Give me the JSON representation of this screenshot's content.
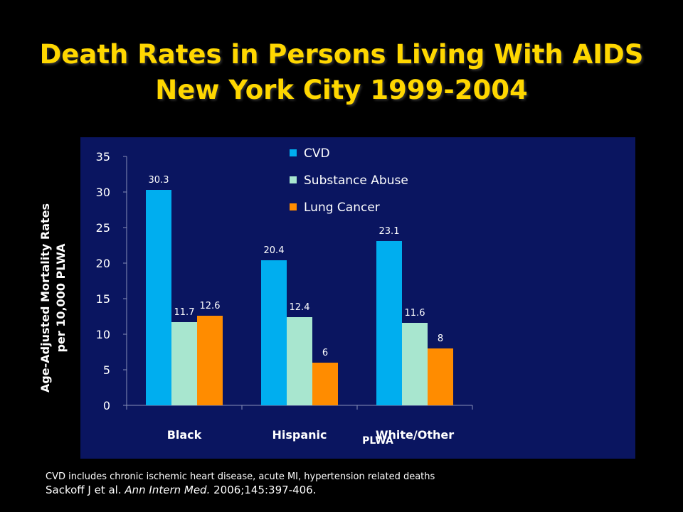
{
  "slide": {
    "title_line1": "Death Rates in Persons Living With AIDS",
    "title_line2": "New York City 1999-2004",
    "footnote": "CVD includes chronic ischemic heart disease, acute MI, hypertension related deaths",
    "citation_authors": "Sackoff J et al. ",
    "citation_journal": "Ann Intern Med.",
    "citation_details": " 2006;145:397-406."
  },
  "colors": {
    "background": "#000000",
    "title": "#FFD700",
    "panel": "#0A1560",
    "cvd": "#00AEEF",
    "substance_abuse": "#A8E6CF",
    "lung_cancer": "#FF8C00"
  },
  "chart_data": {
    "type": "bar",
    "categories": [
      "Black",
      "Hispanic",
      "White/Other"
    ],
    "series": [
      {
        "name": "CVD",
        "values": [
          30.3,
          20.4,
          23.1
        ]
      },
      {
        "name": "Substance Abuse",
        "values": [
          11.7,
          12.4,
          11.6
        ]
      },
      {
        "name": "Lung Cancer",
        "values": [
          12.6,
          6,
          8
        ]
      }
    ],
    "value_labels": [
      [
        "30.3",
        "20.4",
        "23.1"
      ],
      [
        "11.7",
        "12.4",
        "11.6"
      ],
      [
        "12.6",
        "6",
        "8"
      ]
    ],
    "ylim": [
      0,
      35
    ],
    "yticks": [
      0,
      5,
      10,
      15,
      20,
      25,
      30,
      35
    ],
    "ylabel_line1": "Age-Adjusted Mortality Rates",
    "ylabel_line2": "per 10,000 PLWA",
    "xlabel": "PLWA",
    "legend_position": "top-center",
    "grid": false
  }
}
